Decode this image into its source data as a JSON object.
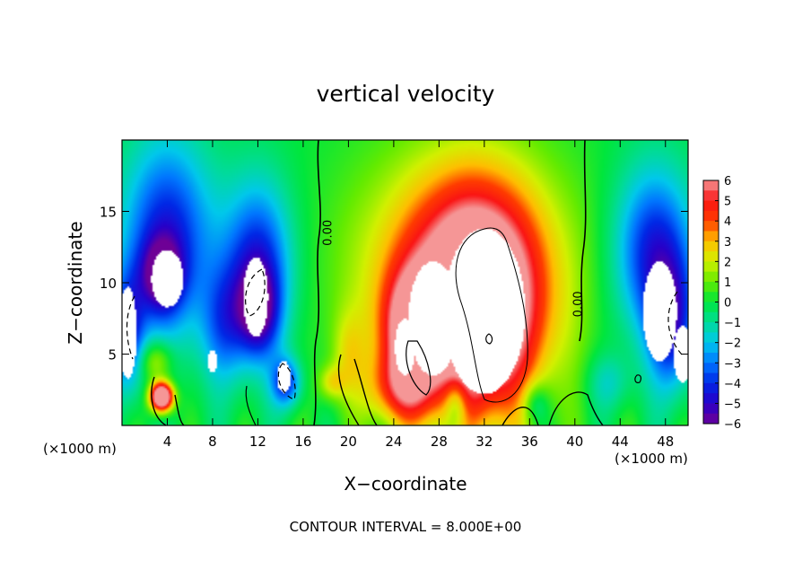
{
  "chart_data": {
    "type": "heatmap",
    "title": "vertical velocity",
    "xlabel": "X−coordinate",
    "ylabel": "Z−coordinate",
    "x_unit": "(×1000 m)",
    "z_unit": "(×1000 m)",
    "xlim": [
      0,
      50
    ],
    "ylim": [
      0,
      20
    ],
    "x_ticks": [
      {
        "value": 4,
        "label": "4"
      },
      {
        "value": 8,
        "label": "8"
      },
      {
        "value": 12,
        "label": "12"
      },
      {
        "value": 16,
        "label": "16"
      },
      {
        "value": 20,
        "label": "20"
      },
      {
        "value": 24,
        "label": "24"
      },
      {
        "value": 28,
        "label": "28"
      },
      {
        "value": 32,
        "label": "32"
      },
      {
        "value": 36,
        "label": "36"
      },
      {
        "value": 40,
        "label": "40"
      },
      {
        "value": 44,
        "label": "44"
      },
      {
        "value": 48,
        "label": "48"
      }
    ],
    "y_ticks": [
      {
        "value": 5,
        "label": "5"
      },
      {
        "value": 10,
        "label": "10"
      },
      {
        "value": 15,
        "label": "15"
      }
    ],
    "colorbar": {
      "min": -6,
      "max": 6,
      "labels": [
        "6",
        "5",
        "4",
        "3",
        "2",
        "1",
        "0",
        "−1",
        "−2",
        "−3",
        "−4",
        "−5",
        "−6"
      ]
    },
    "contour_labels": [
      {
        "text": "0.00",
        "x": 18.5,
        "z": 13.5
      },
      {
        "text": "0.00",
        "x": 40.6,
        "z": 8.5
      }
    ],
    "contour_interval_text": "CONTOUR INTERVAL = 8.000E+00",
    "features": [
      {
        "x": 31.5,
        "z": 8,
        "rx": 5,
        "rz": 7.5,
        "amp": 7
      },
      {
        "x": 30,
        "z": 10.5,
        "rx": 9,
        "rz": 8.5,
        "amp": 4.5
      },
      {
        "x": 25.5,
        "z": 6.5,
        "rx": 2.5,
        "rz": 4,
        "amp": 5
      },
      {
        "x": 24.5,
        "z": 2.5,
        "rx": 3,
        "rz": 2.5,
        "amp": 3
      },
      {
        "x": 18.5,
        "z": 3,
        "rx": 1.2,
        "rz": 1.2,
        "amp": 2
      },
      {
        "x": 29.5,
        "z": 1.5,
        "rx": 1,
        "rz": 2,
        "amp": -2.5
      },
      {
        "x": 36.5,
        "z": 1.5,
        "rx": 1.2,
        "rz": 1.5,
        "amp": -2
      },
      {
        "x": 4,
        "z": 13,
        "rx": 4,
        "rz": 7,
        "amp": -4.5
      },
      {
        "x": 3.5,
        "z": 10.5,
        "rx": 1.8,
        "rz": 2.5,
        "amp": -4
      },
      {
        "x": 0.5,
        "z": 6.5,
        "rx": 1.5,
        "rz": 4,
        "amp": -4
      },
      {
        "x": 12,
        "z": 11,
        "rx": 3,
        "rz": 6,
        "amp": -4.5
      },
      {
        "x": 12,
        "z": 8,
        "rx": 1.8,
        "rz": 3,
        "amp": -4
      },
      {
        "x": 14.5,
        "z": 3,
        "rx": 1.3,
        "rz": 1.7,
        "amp": -4
      },
      {
        "x": 9,
        "z": 7,
        "rx": 2,
        "rz": 4,
        "amp": -2.5
      },
      {
        "x": 3.5,
        "z": 2,
        "rx": 1,
        "rz": 1,
        "amp": 10
      },
      {
        "x": 3,
        "z": 4.5,
        "rx": 1.5,
        "rz": 1.5,
        "amp": 2.5
      },
      {
        "x": 47,
        "z": 12,
        "rx": 3.5,
        "rz": 6,
        "amp": -4.5
      },
      {
        "x": 48.5,
        "z": 7,
        "rx": 2,
        "rz": 4.5,
        "amp": -4
      },
      {
        "x": 43,
        "z": 3,
        "rx": 2,
        "rz": 2,
        "amp": -1.5
      },
      {
        "x": 20,
        "z": 5,
        "rx": 1.5,
        "rz": 3,
        "amp": 1.5
      }
    ],
    "white_regions": [
      {
        "x": 32,
        "z": 8,
        "rx": 3.6,
        "rz": 5.8
      },
      {
        "x": 27.5,
        "z": 7.5,
        "rx": 2.2,
        "rz": 4
      },
      {
        "x": 25,
        "z": 5.5,
        "rx": 0.9,
        "rz": 2
      },
      {
        "x": 0.5,
        "z": 6.5,
        "rx": 0.8,
        "rz": 3.2
      },
      {
        "x": 4,
        "z": 10.3,
        "rx": 1.4,
        "rz": 2
      },
      {
        "x": 11.8,
        "z": 9,
        "rx": 1.1,
        "rz": 2.8
      },
      {
        "x": 14.3,
        "z": 3.4,
        "rx": 0.6,
        "rz": 1.1
      },
      {
        "x": 8,
        "z": 4.5,
        "rx": 0.4,
        "rz": 0.8
      },
      {
        "x": 47.5,
        "z": 8,
        "rx": 1.5,
        "rz": 3.5
      },
      {
        "x": 49.5,
        "z": 5,
        "rx": 0.8,
        "rz": 2
      }
    ]
  }
}
